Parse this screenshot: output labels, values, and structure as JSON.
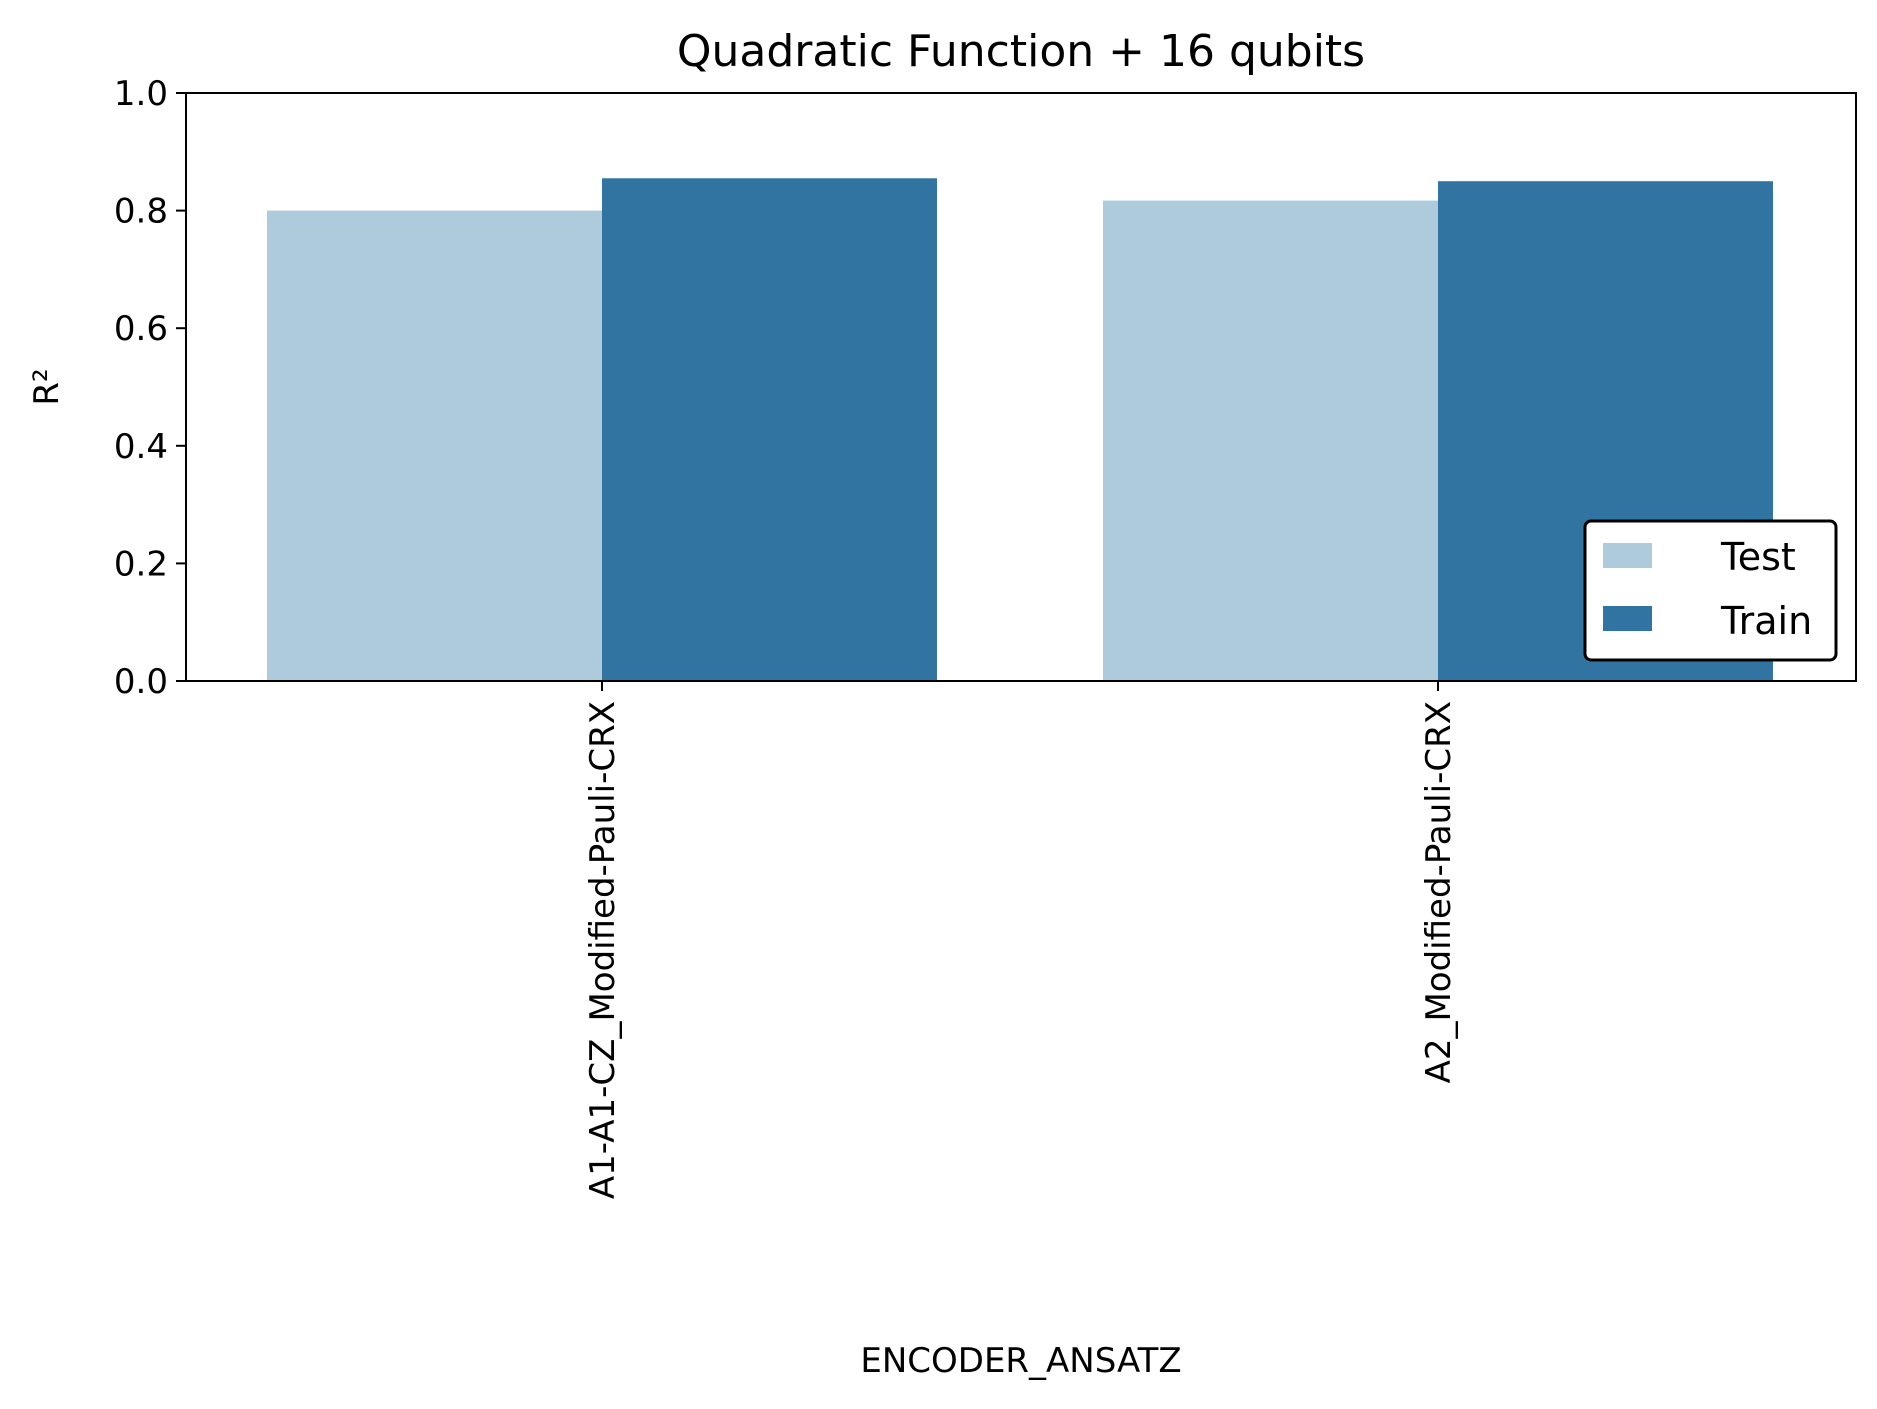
{
  "chart_data": {
    "type": "bar",
    "title": "Quadratic Function + 16 qubits",
    "xlabel": "ENCODER_ANSATZ",
    "ylabel": "R²",
    "ylim": [
      0,
      1.0
    ],
    "yticks": [
      "0.0",
      "0.2",
      "0.4",
      "0.6",
      "0.8",
      "1.0"
    ],
    "categories": [
      "A1-A1-CZ_Modified-Pauli-CRX",
      "A2_Modified-Pauli-CRX"
    ],
    "series": [
      {
        "name": "Test",
        "values": [
          0.8,
          0.817
        ],
        "color": "#aecbdc"
      },
      {
        "name": "Train",
        "values": [
          0.855,
          0.85
        ],
        "color": "#3274a1"
      }
    ],
    "legend_position": "lower-right",
    "grid": false
  }
}
